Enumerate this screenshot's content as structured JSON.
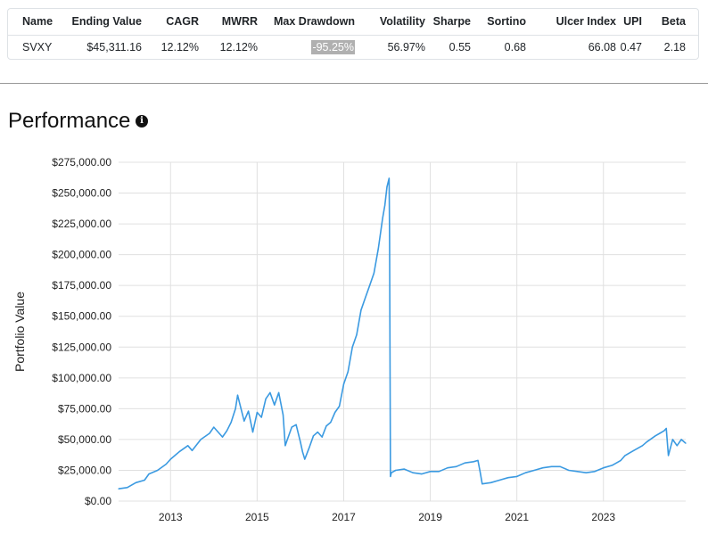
{
  "stats": {
    "headers": [
      "Name",
      "Ending Value",
      "CAGR",
      "MWRR",
      "Max Drawdown",
      "Volatility",
      "Sharpe",
      "Sortino",
      "Ulcer Index",
      "UPI",
      "Beta"
    ],
    "row": [
      "SVXY",
      "$45,311.16",
      "12.12%",
      "12.12%",
      "-95.25%",
      "56.97%",
      "0.55",
      "0.68",
      "66.08",
      "0.47",
      "2.18"
    ]
  },
  "section": {
    "title": "Performance",
    "info_icon": "info-icon"
  },
  "colors": {
    "line": "#3b9ae1",
    "grid": "#e0e0e0",
    "highlight": "#b0b0b0"
  },
  "chart_data": {
    "type": "line",
    "ylabel": "Portfolio Value",
    "ylim": [
      0,
      275000
    ],
    "yticks": [
      "$0.00",
      "$25,000.00",
      "$50,000.00",
      "$75,000.00",
      "$100,000.00",
      "$125,000.00",
      "$150,000.00",
      "$175,000.00",
      "$200,000.00",
      "$225,000.00",
      "$250,000.00",
      "$275,000.00"
    ],
    "xlim": [
      2011.8,
      2024.9
    ],
    "xticks": [
      "2013",
      "2015",
      "2017",
      "2019",
      "2021",
      "2023"
    ],
    "series": [
      {
        "x": [
          2011.8,
          2012.0,
          2012.2,
          2012.4,
          2012.5,
          2012.7,
          2012.9,
          2013.0,
          2013.2,
          2013.4,
          2013.5,
          2013.7,
          2013.9,
          2014.0,
          2014.2,
          2014.3,
          2014.4,
          2014.5,
          2014.55,
          2014.6,
          2014.7,
          2014.8,
          2014.9,
          2015.0,
          2015.1,
          2015.2,
          2015.3,
          2015.4,
          2015.5,
          2015.6,
          2015.65,
          2015.7,
          2015.8,
          2015.9,
          2016.0,
          2016.05,
          2016.1,
          2016.2,
          2016.3,
          2016.4,
          2016.5,
          2016.6,
          2016.7,
          2016.8,
          2016.9,
          2017.0,
          2017.1,
          2017.2,
          2017.3,
          2017.4,
          2017.5,
          2017.6,
          2017.7,
          2017.8,
          2017.9,
          2017.95,
          2018.0,
          2018.05,
          2018.06,
          2018.08,
          2018.1,
          2018.2,
          2018.4,
          2018.6,
          2018.8,
          2019.0,
          2019.2,
          2019.4,
          2019.6,
          2019.8,
          2020.0,
          2020.1,
          2020.15,
          2020.2,
          2020.4,
          2020.6,
          2020.8,
          2021.0,
          2021.2,
          2021.4,
          2021.6,
          2021.8,
          2022.0,
          2022.2,
          2022.4,
          2022.6,
          2022.8,
          2023.0,
          2023.2,
          2023.4,
          2023.5,
          2023.7,
          2023.9,
          2024.0,
          2024.2,
          2024.3,
          2024.4,
          2024.45,
          2024.5,
          2024.6,
          2024.7,
          2024.8,
          2024.9
        ],
        "y": [
          10000,
          11000,
          15000,
          17000,
          22000,
          25000,
          30000,
          34000,
          40000,
          45000,
          41000,
          50000,
          55000,
          60000,
          52000,
          57000,
          64000,
          75000,
          86000,
          79000,
          65000,
          73000,
          56000,
          72000,
          68000,
          83000,
          88000,
          78000,
          88000,
          70000,
          45000,
          50000,
          60000,
          62000,
          48000,
          40000,
          34000,
          43000,
          53000,
          56000,
          52000,
          61000,
          64000,
          72000,
          77000,
          95000,
          105000,
          125000,
          135000,
          155000,
          165000,
          175000,
          185000,
          205000,
          230000,
          240000,
          255000,
          262000,
          215000,
          20000,
          23000,
          25000,
          26000,
          23000,
          22000,
          24000,
          24000,
          27000,
          28000,
          31000,
          32000,
          33000,
          24000,
          14000,
          15000,
          17000,
          19000,
          20000,
          23000,
          25000,
          27000,
          28000,
          28000,
          25000,
          24000,
          23000,
          24000,
          27000,
          29000,
          33000,
          37000,
          41000,
          45000,
          48000,
          53000,
          55000,
          57000,
          59000,
          37000,
          50000,
          45000,
          50000,
          47000
        ]
      }
    ]
  }
}
